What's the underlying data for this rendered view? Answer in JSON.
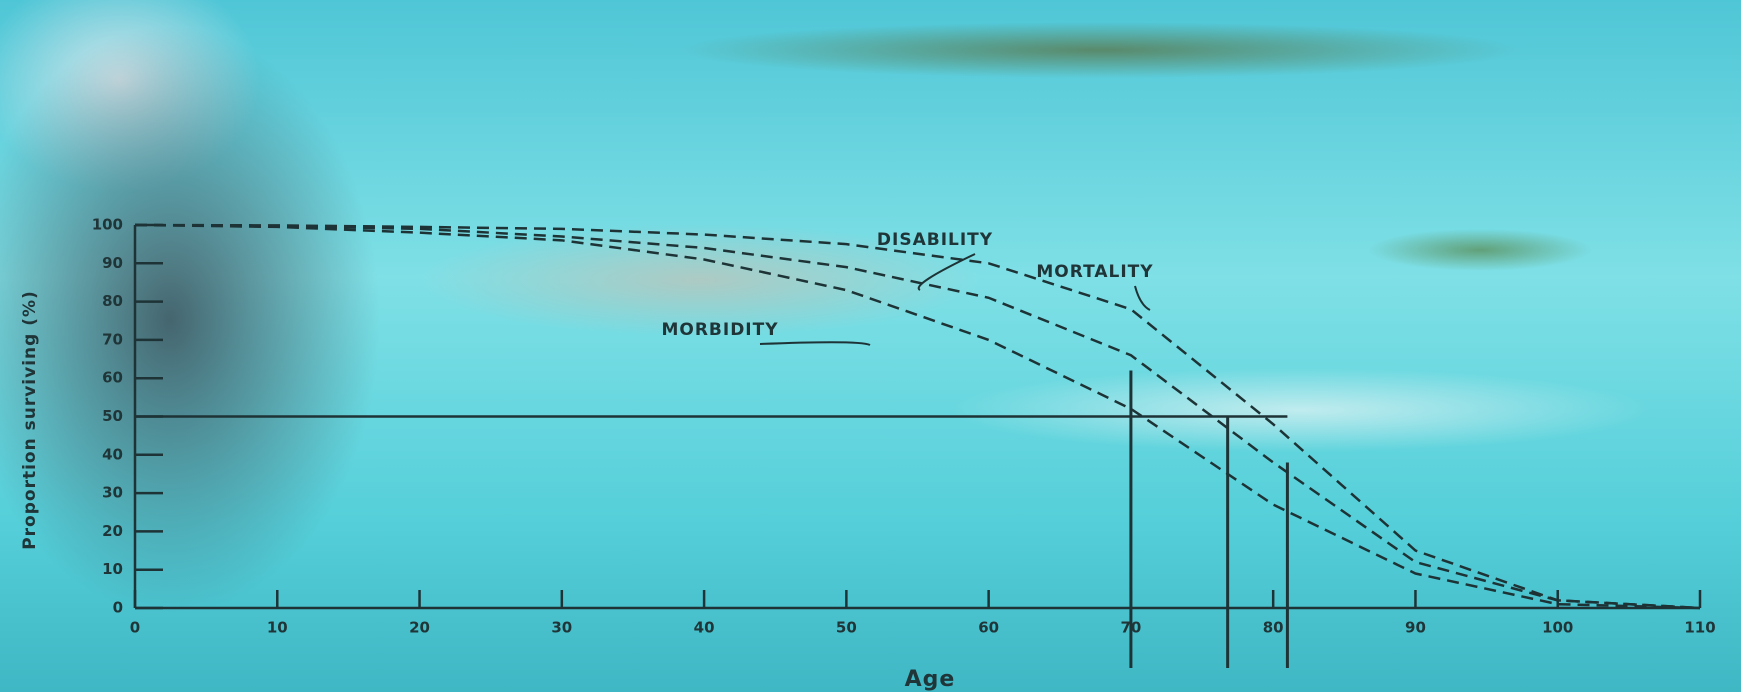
{
  "chart_data": {
    "type": "line",
    "y_label": "Proportion surviving (%)",
    "x_label": "Age",
    "x": [
      0,
      10,
      20,
      30,
      40,
      50,
      60,
      70,
      80,
      90,
      100,
      110
    ],
    "series": [
      {
        "name": "MORBIDITY",
        "color": "#1d3336",
        "values": [
          100,
          99.5,
          98,
          96,
          91,
          83,
          70,
          52,
          27,
          9,
          1,
          0
        ]
      },
      {
        "name": "DISABILITY",
        "color": "#1d3336",
        "values": [
          100,
          99.7,
          99,
          97,
          94,
          89,
          81,
          66,
          38,
          12,
          2,
          0
        ]
      },
      {
        "name": "MORTALITY",
        "color": "#1d3336",
        "values": [
          100,
          99.9,
          99.5,
          99,
          97.5,
          95,
          90,
          78,
          48,
          15,
          2,
          0
        ]
      }
    ],
    "reference_lines": [
      {
        "x": 70,
        "y": 62
      },
      {
        "x": 76.8,
        "y": 50
      },
      {
        "x": 81,
        "y": 38
      }
    ],
    "hline": 50,
    "xlim": [
      0,
      110
    ],
    "ylim": [
      0,
      100
    ],
    "xticks": [
      0,
      10,
      20,
      30,
      40,
      50,
      60,
      70,
      80,
      90,
      100,
      110
    ],
    "yticks": [
      0,
      10,
      20,
      30,
      40,
      50,
      60,
      70,
      80,
      90,
      100
    ]
  }
}
